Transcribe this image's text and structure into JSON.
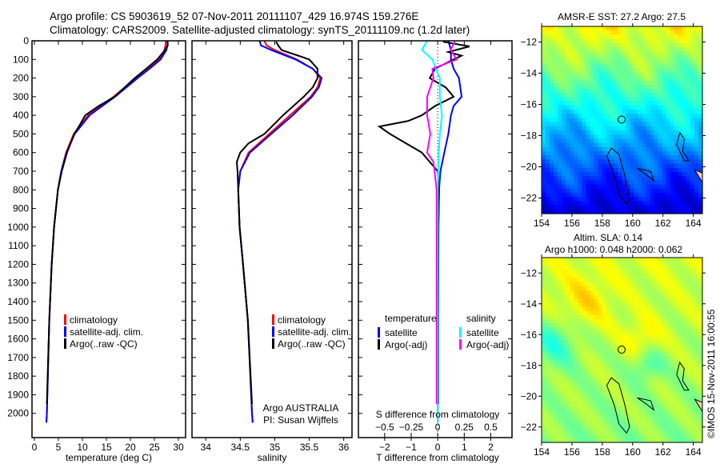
{
  "title": {
    "line1": "Argo profile: CS 5903619_52 07-Nov-2011 20111107_429 16.974S 159.276E",
    "line2": "Climatology: CARS2009. Satellite-adjusted climatology: synTS_20111109.nc (1.2d later)"
  },
  "colors": {
    "climatology": "#ff0000",
    "satellite": "#0000ff",
    "argo": "#000000",
    "sal_satellite": "#00ffff",
    "sal_argo": "#ff00ff"
  },
  "chart_data": [
    {
      "type": "line",
      "name": "temperature",
      "xlabel": "temperature (deg C)",
      "xlim": [
        -0.5,
        31.5
      ],
      "xticks": [
        0,
        5,
        10,
        15,
        20,
        25,
        30
      ],
      "ylim": [
        0,
        2130
      ],
      "yticks": [
        0,
        100,
        200,
        300,
        400,
        500,
        600,
        700,
        800,
        900,
        1000,
        1100,
        1200,
        1300,
        1400,
        1500,
        1600,
        1700,
        1800,
        1900,
        2000
      ],
      "yreversed": true,
      "legend": [
        "climatology",
        "satellite-adj. clim.",
        "Argo(..raw -QC)"
      ],
      "series": [
        {
          "name": "climatology",
          "depth": [
            0,
            25,
            50,
            100,
            150,
            200,
            300,
            400,
            500,
            600,
            700,
            800,
            1000,
            1200,
            1500,
            2000,
            2050
          ],
          "values": [
            27.4,
            27.3,
            27.1,
            26,
            23.8,
            21.2,
            16.5,
            11.2,
            8.2,
            6.6,
            5.6,
            4.9,
            4.1,
            3.6,
            3.1,
            2.6,
            2.5
          ]
        },
        {
          "name": "satellite-adj. clim.",
          "depth": [
            0,
            25,
            50,
            100,
            150,
            200,
            300,
            400,
            500,
            600,
            700,
            800,
            1000,
            1200,
            1500,
            2000,
            2050
          ],
          "values": [
            27.8,
            27.7,
            27.5,
            26.3,
            24,
            21.5,
            16.8,
            11.5,
            8.4,
            6.7,
            5.6,
            4.9,
            4.1,
            3.6,
            3.1,
            2.6,
            2.5
          ]
        },
        {
          "name": "Argo",
          "depth": [
            5,
            25,
            50,
            100,
            150,
            200,
            300,
            350,
            400,
            450,
            500,
            600,
            700,
            800,
            1000,
            1200,
            1500,
            1950
          ],
          "values": [
            27.7,
            27.8,
            27.2,
            25.6,
            23.3,
            20.9,
            16.7,
            13.4,
            10.6,
            9.5,
            8.3,
            6.8,
            5.7,
            4.9,
            4.1,
            3.6,
            3.1,
            2.6
          ]
        }
      ]
    },
    {
      "type": "line",
      "name": "salinity",
      "xlabel": "salinity",
      "xlim": [
        33.8,
        36.12
      ],
      "xticks": [
        34,
        34.5,
        35,
        35.5,
        36
      ],
      "ylim": [
        0,
        2130
      ],
      "yreversed": true,
      "legend": [
        "climatology",
        "satellite-adj. clim.",
        "Argo(..raw -QC)"
      ],
      "annotation": [
        "Argo AUSTRALIA",
        "PI: Susan Wijffels"
      ],
      "series": [
        {
          "name": "climatology",
          "depth": [
            0,
            25,
            50,
            100,
            150,
            200,
            250,
            300,
            400,
            500,
            600,
            700,
            800,
            1000,
            1200,
            1500,
            2000,
            2050
          ],
          "values": [
            34.85,
            34.88,
            35,
            35.32,
            35.55,
            35.66,
            35.62,
            35.52,
            35.22,
            34.92,
            34.62,
            34.5,
            34.47,
            34.49,
            34.54,
            34.61,
            34.67,
            34.68
          ]
        },
        {
          "name": "satellite-adj. clim.",
          "depth": [
            0,
            25,
            50,
            100,
            150,
            200,
            250,
            300,
            400,
            500,
            600,
            700,
            800,
            1000,
            1200,
            1500,
            2000,
            2050
          ],
          "values": [
            34.78,
            34.8,
            34.95,
            35.3,
            35.55,
            35.68,
            35.64,
            35.54,
            35.26,
            34.95,
            34.64,
            34.5,
            34.47,
            34.49,
            34.54,
            34.61,
            34.67,
            34.68
          ]
        },
        {
          "name": "Argo",
          "depth": [
            5,
            25,
            50,
            100,
            150,
            200,
            250,
            300,
            400,
            500,
            550,
            600,
            650,
            700,
            800,
            1000,
            1200,
            1500,
            1950
          ],
          "values": [
            35.02,
            35.05,
            35.1,
            35.5,
            35.62,
            35.62,
            35.55,
            35.42,
            35.12,
            34.85,
            34.62,
            34.5,
            34.45,
            34.46,
            34.47,
            34.49,
            34.54,
            34.61,
            34.67
          ]
        }
      ]
    },
    {
      "type": "line",
      "name": "difference",
      "xlabel": "T difference from climatology",
      "xlim": [
        -2.99,
        2.8
      ],
      "xticks": [
        -2,
        -1,
        0,
        1,
        2
      ],
      "x2label": "S difference from climatology",
      "x2ticks": [
        -0.5,
        -0.25,
        0,
        0.25,
        0.5
      ],
      "x2lim": [
        -0.7475,
        0.7
      ],
      "ylim": [
        0,
        2130
      ],
      "yreversed": true,
      "legend_temperature": {
        "title": "temperature",
        "items": [
          "satellite",
          "Argo(-adj)"
        ]
      },
      "legend_salinity": {
        "title": "salinity",
        "items": [
          "satellite",
          "Argo(-adj)"
        ]
      },
      "series": [
        {
          "name": "T satellite",
          "depth": [
            0,
            50,
            100,
            150,
            200,
            300,
            350,
            400,
            500,
            600,
            700,
            800,
            1000,
            1500,
            2000,
            2050
          ],
          "values": [
            0.4,
            0.5,
            0.5,
            0.6,
            0.8,
            0.9,
            0.6,
            0.5,
            0.4,
            0.25,
            0.1,
            0.05,
            0.02,
            0.01,
            0,
            0
          ]
        },
        {
          "name": "T Argo(-adj)",
          "depth": [
            5,
            30,
            60,
            80,
            100,
            150,
            200,
            250,
            300,
            350,
            400,
            430,
            460,
            500,
            550,
            600,
            650,
            700,
            800,
            1000,
            1500,
            1950
          ],
          "values": [
            0.2,
            1.2,
            0.4,
            0.9,
            0.6,
            -0.1,
            -0.3,
            0.3,
            0.6,
            -0.1,
            -0.6,
            -1.1,
            -2.2,
            -1.8,
            -1.2,
            -0.6,
            -0.3,
            0,
            0.05,
            0.03,
            0.02,
            0.02
          ]
        },
        {
          "name": "S satellite",
          "depth": [
            0,
            50,
            100,
            150,
            200,
            300,
            400,
            500,
            600,
            700,
            800,
            1000,
            2000,
            2050
          ],
          "values": [
            -0.1,
            -0.15,
            -0.05,
            -0.02,
            0.02,
            0.02,
            0.04,
            0.02,
            0.01,
            0.005,
            0,
            0,
            0,
            0
          ]
        },
        {
          "name": "S Argo(-adj)",
          "depth": [
            5,
            50,
            100,
            150,
            200,
            250,
            300,
            400,
            500,
            600,
            650,
            700,
            800,
            1000,
            1500,
            1950
          ],
          "values": [
            0.16,
            0.12,
            0.18,
            -0.05,
            -0.04,
            -0.07,
            -0.1,
            -0.1,
            -0.07,
            -0.1,
            -0.04,
            -0.03,
            -0.01,
            -0.01,
            -0.01,
            -0.01
          ]
        }
      ]
    },
    {
      "type": "heatmap",
      "name": "sst-map",
      "title": "AMSR-E SST: 27.2 Argo: 27.5",
      "xlim": [
        154,
        164.6
      ],
      "ylim": [
        -23,
        -11
      ],
      "xticks": [
        154,
        156,
        158,
        160,
        162,
        164
      ],
      "yticks": [
        -12,
        -14,
        -16,
        -18,
        -20,
        -22
      ],
      "argo_position": [
        159.276,
        -16.974
      ]
    },
    {
      "type": "heatmap",
      "name": "sla-map",
      "title": [
        "Altim. SLA: 0.14",
        "Argo h1000: 0.048 h2000: 0.062"
      ],
      "xlim": [
        154,
        164.6
      ],
      "ylim": [
        -23,
        -11
      ],
      "xticks": [
        154,
        156,
        158,
        160,
        162,
        164
      ],
      "yticks": [
        -12,
        -14,
        -16,
        -18,
        -20,
        -22
      ],
      "argo_position": [
        159.276,
        -16.974
      ]
    }
  ],
  "credit": "©IMOS 15-Nov-2011 16:00:55"
}
